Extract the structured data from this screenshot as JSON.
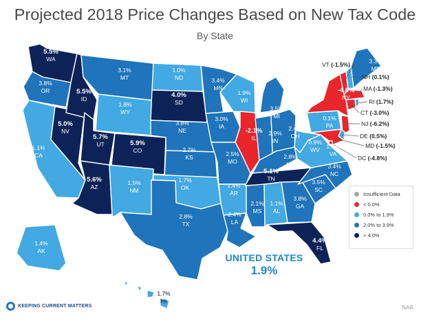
{
  "title": "Projected 2018 Price Changes Based on New Tax Code",
  "subtitle": "By State",
  "colors": {
    "insufficient": "#a5a5a5",
    "negative": "#e8262c",
    "low": "#42a9e2",
    "mid": "#1f74bb",
    "high": "#0d2358"
  },
  "legend": {
    "items": [
      {
        "label": "Insufficient Data",
        "color": "#a5a5a5"
      },
      {
        "label": "< 0.0%",
        "color": "#e8262c"
      },
      {
        "label": "0.0% to 1.9%",
        "color": "#42a9e2"
      },
      {
        "label": "2.0% to 3.9%",
        "color": "#1f74bb"
      },
      {
        "label": "> 4.0%",
        "color": "#0d2358"
      }
    ]
  },
  "states": [
    {
      "abbr": "WA",
      "value": "5.5%",
      "class": "high"
    },
    {
      "abbr": "OR",
      "value": "3.8%",
      "class": "mid"
    },
    {
      "abbr": "CA",
      "value": "1.1%",
      "class": "low"
    },
    {
      "abbr": "NV",
      "value": "5.0%",
      "class": "high"
    },
    {
      "abbr": "ID",
      "value": "5.5%",
      "class": "high"
    },
    {
      "abbr": "MT",
      "value": "3.1%",
      "class": "mid"
    },
    {
      "abbr": "WY",
      "value": "1.8%",
      "class": "low"
    },
    {
      "abbr": "UT",
      "value": "5.7%",
      "class": "high"
    },
    {
      "abbr": "AZ",
      "value": "5.6%",
      "class": "high"
    },
    {
      "abbr": "CO",
      "value": "5.9%",
      "class": "high"
    },
    {
      "abbr": "NM",
      "value": "1.5%",
      "class": "low"
    },
    {
      "abbr": "ND",
      "value": "1.0%",
      "class": "low"
    },
    {
      "abbr": "SD",
      "value": "4.0%",
      "class": "high"
    },
    {
      "abbr": "NE",
      "value": "3.8%",
      "class": "mid"
    },
    {
      "abbr": "KS",
      "value": "2.7%",
      "class": "mid"
    },
    {
      "abbr": "OK",
      "value": "1.7%",
      "class": "low"
    },
    {
      "abbr": "TX",
      "value": "2.8%",
      "class": "mid"
    },
    {
      "abbr": "MN",
      "value": "3.4%",
      "class": "mid"
    },
    {
      "abbr": "IA",
      "value": "3.0%",
      "class": "mid"
    },
    {
      "abbr": "MO",
      "value": "2.5%",
      "class": "mid"
    },
    {
      "abbr": "AR",
      "value": "1.4%",
      "class": "low"
    },
    {
      "abbr": "LA",
      "value": "2.4%",
      "class": "mid"
    },
    {
      "abbr": "WI",
      "value": "1.9%",
      "class": "low"
    },
    {
      "abbr": "IL",
      "value": "-2.1%",
      "class": "negative"
    },
    {
      "abbr": "MI",
      "value": "3.5%",
      "class": "mid"
    },
    {
      "abbr": "IN",
      "value": "2.9%",
      "class": "mid"
    },
    {
      "abbr": "OH",
      "value": "2.4%",
      "class": "mid"
    },
    {
      "abbr": "KY",
      "value": "2.8%",
      "class": "mid"
    },
    {
      "abbr": "TN",
      "value": "5.1%",
      "class": "high"
    },
    {
      "abbr": "MS",
      "value": "2.1%",
      "class": "mid"
    },
    {
      "abbr": "AL",
      "value": "1.1%",
      "class": "low"
    },
    {
      "abbr": "GA",
      "value": "3.8%",
      "class": "mid"
    },
    {
      "abbr": "FL",
      "value": "4.4%",
      "class": "high"
    },
    {
      "abbr": "SC",
      "value": "3.5%",
      "class": "mid"
    },
    {
      "abbr": "NC",
      "value": "3.4%",
      "class": "mid"
    },
    {
      "abbr": "VA",
      "value": "1.6%",
      "class": "low"
    },
    {
      "abbr": "WV",
      "value": "0.9%",
      "class": "low"
    },
    {
      "abbr": "PA",
      "value": "0.1%",
      "class": "low"
    },
    {
      "abbr": "NY",
      "value": "-4.8%",
      "class": "negative"
    },
    {
      "abbr": "ME",
      "value": "3.3%",
      "class": "mid"
    },
    {
      "abbr": "AK",
      "value": "1.4%",
      "class": "low"
    },
    {
      "abbr": "HI",
      "value": "1.7%",
      "class": "low"
    }
  ],
  "callouts": [
    {
      "abbr": "VT",
      "value": "(-1.5%)",
      "class": "negative"
    },
    {
      "abbr": "NH",
      "value": "(0.1%)",
      "class": "low"
    },
    {
      "abbr": "MA",
      "value": "(-1.3%)",
      "class": "negative"
    },
    {
      "abbr": "RI",
      "value": "(1.7%)",
      "class": "low"
    },
    {
      "abbr": "CT",
      "value": "(-3.0%)",
      "class": "negative"
    },
    {
      "abbr": "NJ",
      "value": "(-6.2%)",
      "class": "negative"
    },
    {
      "abbr": "DE",
      "value": "(0.5%)",
      "class": "low"
    },
    {
      "abbr": "MD",
      "value": "(-1.5%)",
      "class": "negative"
    },
    {
      "abbr": "DC",
      "value": "(-4.8%)",
      "class": "negative"
    }
  ],
  "national": {
    "label": "UNITED STATES",
    "value": "1.9%"
  },
  "brand": "Keeping Current Matters",
  "source": "NAR"
}
